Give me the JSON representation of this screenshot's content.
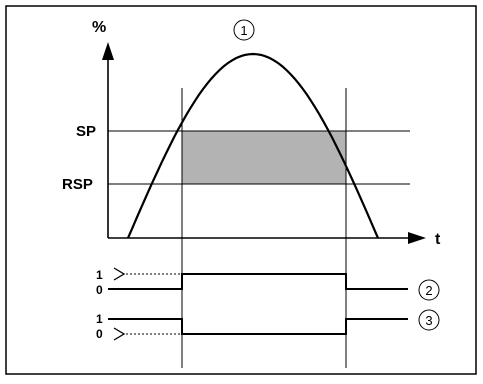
{
  "diagram": {
    "y_axis_unit": "%",
    "x_axis_label": "t",
    "levels": {
      "setpoint": "SP",
      "reset_setpoint": "RSP"
    },
    "callouts": {
      "curve": "1",
      "output_normally_open": "2",
      "output_normally_closed": "3"
    },
    "signal_states": {
      "output_normally_open": {
        "high": "1",
        "low": "0"
      },
      "output_normally_closed": {
        "high": "1",
        "low": "0"
      }
    }
  }
}
